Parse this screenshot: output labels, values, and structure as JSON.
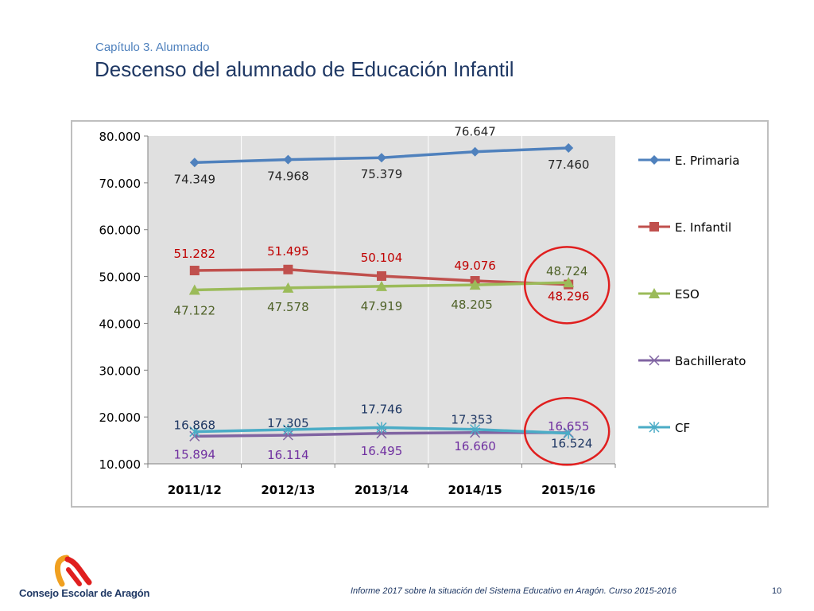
{
  "header": {
    "subtitle": "Capítulo 3. Alumnado",
    "title": "Descenso del alumnado de Educación Infantil"
  },
  "footer": {
    "org_name": "Consejo Escolar de Aragón",
    "report": "Informe 2017 sobre la situación del Sistema Educativo en Aragón. Curso 2015-2016",
    "page": "10"
  },
  "chart_data": {
    "type": "line",
    "categories": [
      "2011/12",
      "2012/13",
      "2013/14",
      "2014/15",
      "2015/16"
    ],
    "ylim": [
      10000,
      80000
    ],
    "yticks": [
      10000,
      20000,
      30000,
      40000,
      50000,
      60000,
      70000,
      80000
    ],
    "ytick_labels": [
      "10.000",
      "20.000",
      "30.000",
      "40.000",
      "50.000",
      "60.000",
      "70.000",
      "80.000"
    ],
    "grid": "vertical",
    "legend": "right",
    "highlight_category": "2015/16",
    "highlight_color": "#e01f1f",
    "series": [
      {
        "name": "E. Primaria",
        "color": "#4f81bd",
        "label_color": "#262626",
        "marker": "diamond",
        "values": [
          74349,
          74968,
          75379,
          76647,
          77460
        ],
        "labels": [
          "74.349",
          "74.968",
          "75.379",
          "76.647",
          "77.460"
        ]
      },
      {
        "name": "E. Infantil",
        "color": "#c0504d",
        "label_color": "#c00000",
        "marker": "square",
        "values": [
          51282,
          51495,
          50104,
          49076,
          48296
        ],
        "labels": [
          "51.282",
          "51.495",
          "50.104",
          "49.076",
          "48.296"
        ]
      },
      {
        "name": "ESO",
        "color": "#9bbb59",
        "label_color": "#4f6228",
        "marker": "triangle",
        "values": [
          47122,
          47578,
          47919,
          48205,
          48724
        ],
        "labels": [
          "47.122",
          "47.578",
          "47.919",
          "48.205",
          "48.724"
        ]
      },
      {
        "name": "Bachillerato",
        "color": "#8064a2",
        "label_color": "#7030a0",
        "marker": "x",
        "values": [
          15894,
          16114,
          16495,
          16660,
          16655
        ],
        "labels": [
          "15.894",
          "16.114",
          "16.495",
          "16.660",
          "16.655"
        ]
      },
      {
        "name": "CF",
        "color": "#4bacc6",
        "label_color": "#1f3864",
        "marker": "star",
        "values": [
          16868,
          17305,
          17746,
          17353,
          16524
        ],
        "labels": [
          "16.868",
          "17.305",
          "17.746",
          "17.353",
          "16.524"
        ]
      }
    ]
  }
}
